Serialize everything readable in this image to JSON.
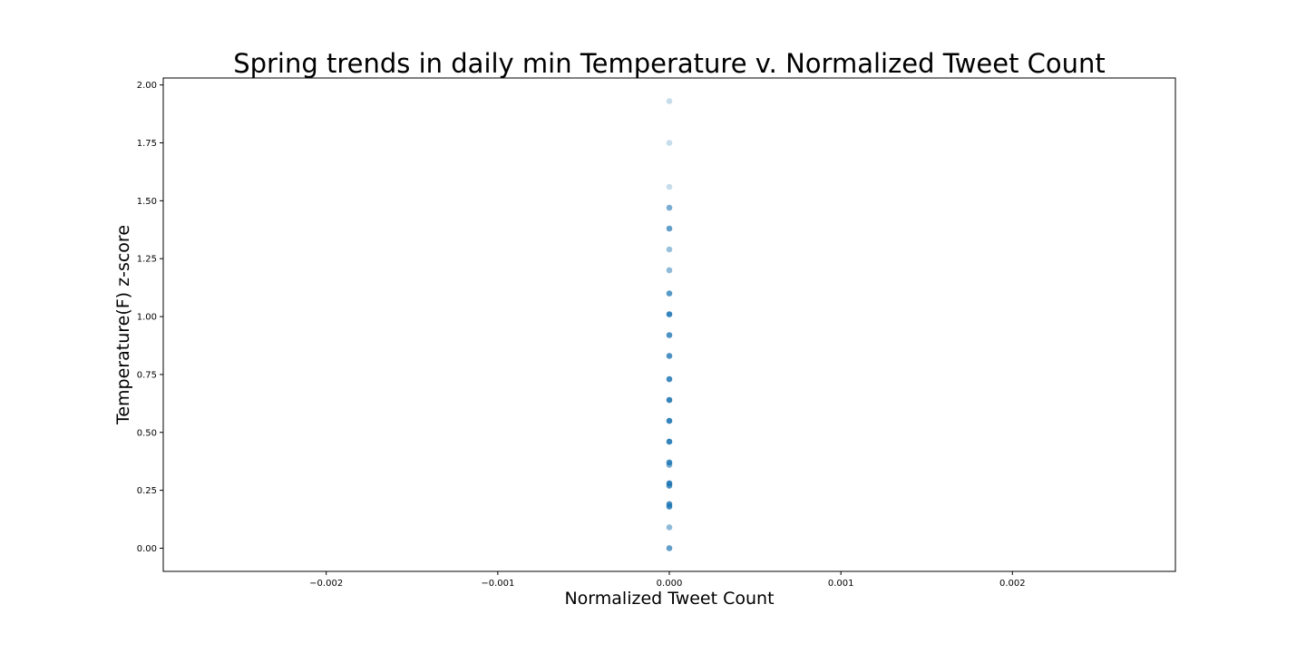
{
  "chart_data": {
    "type": "scatter",
    "title": "Spring trends in daily min Temperature v. Normalized Tweet Count",
    "xlabel": "Normalized Tweet Count",
    "ylabel": "Temperature(F) z-score",
    "xlim": [
      -0.00295,
      0.00295
    ],
    "ylim": [
      -0.1,
      2.03
    ],
    "xticks": [
      -0.002,
      -0.001,
      0.0,
      0.001,
      0.002
    ],
    "xtick_labels": [
      "−0.002",
      "−0.001",
      "0.000",
      "0.001",
      "0.002"
    ],
    "yticks": [
      0.0,
      0.25,
      0.5,
      0.75,
      1.0,
      1.25,
      1.5,
      1.75,
      2.0
    ],
    "ytick_labels": [
      "0.00",
      "0.25",
      "0.50",
      "0.75",
      "1.00",
      "1.25",
      "1.50",
      "1.75",
      "2.00"
    ],
    "grid": false,
    "marker_color": "#1f77b4",
    "points": [
      {
        "x": 0,
        "y": 1.93,
        "opacity": 0.25
      },
      {
        "x": 0,
        "y": 1.75,
        "opacity": 0.25
      },
      {
        "x": 0,
        "y": 1.56,
        "opacity": 0.25
      },
      {
        "x": 0,
        "y": 1.47,
        "opacity": 0.6
      },
      {
        "x": 0,
        "y": 1.38,
        "opacity": 0.7
      },
      {
        "x": 0,
        "y": 1.29,
        "opacity": 0.45
      },
      {
        "x": 0,
        "y": 1.2,
        "opacity": 0.5
      },
      {
        "x": 0,
        "y": 1.1,
        "opacity": 0.75
      },
      {
        "x": 0,
        "y": 1.01,
        "opacity": 0.9
      },
      {
        "x": 0,
        "y": 0.92,
        "opacity": 0.8
      },
      {
        "x": 0,
        "y": 0.83,
        "opacity": 0.8
      },
      {
        "x": 0,
        "y": 0.73,
        "opacity": 0.85
      },
      {
        "x": 0,
        "y": 0.64,
        "opacity": 0.9
      },
      {
        "x": 0,
        "y": 0.55,
        "opacity": 0.9
      },
      {
        "x": 0,
        "y": 0.46,
        "opacity": 0.9
      },
      {
        "x": 0,
        "y": 0.37,
        "opacity": 0.85
      },
      {
        "x": 0,
        "y": 0.36,
        "opacity": 0.6
      },
      {
        "x": 0,
        "y": 0.28,
        "opacity": 0.9
      },
      {
        "x": 0,
        "y": 0.27,
        "opacity": 0.8
      },
      {
        "x": 0,
        "y": 0.19,
        "opacity": 0.85
      },
      {
        "x": 0,
        "y": 0.18,
        "opacity": 0.85
      },
      {
        "x": 0,
        "y": 0.09,
        "opacity": 0.5
      },
      {
        "x": 0,
        "y": 0.0,
        "opacity": 0.7
      }
    ]
  }
}
